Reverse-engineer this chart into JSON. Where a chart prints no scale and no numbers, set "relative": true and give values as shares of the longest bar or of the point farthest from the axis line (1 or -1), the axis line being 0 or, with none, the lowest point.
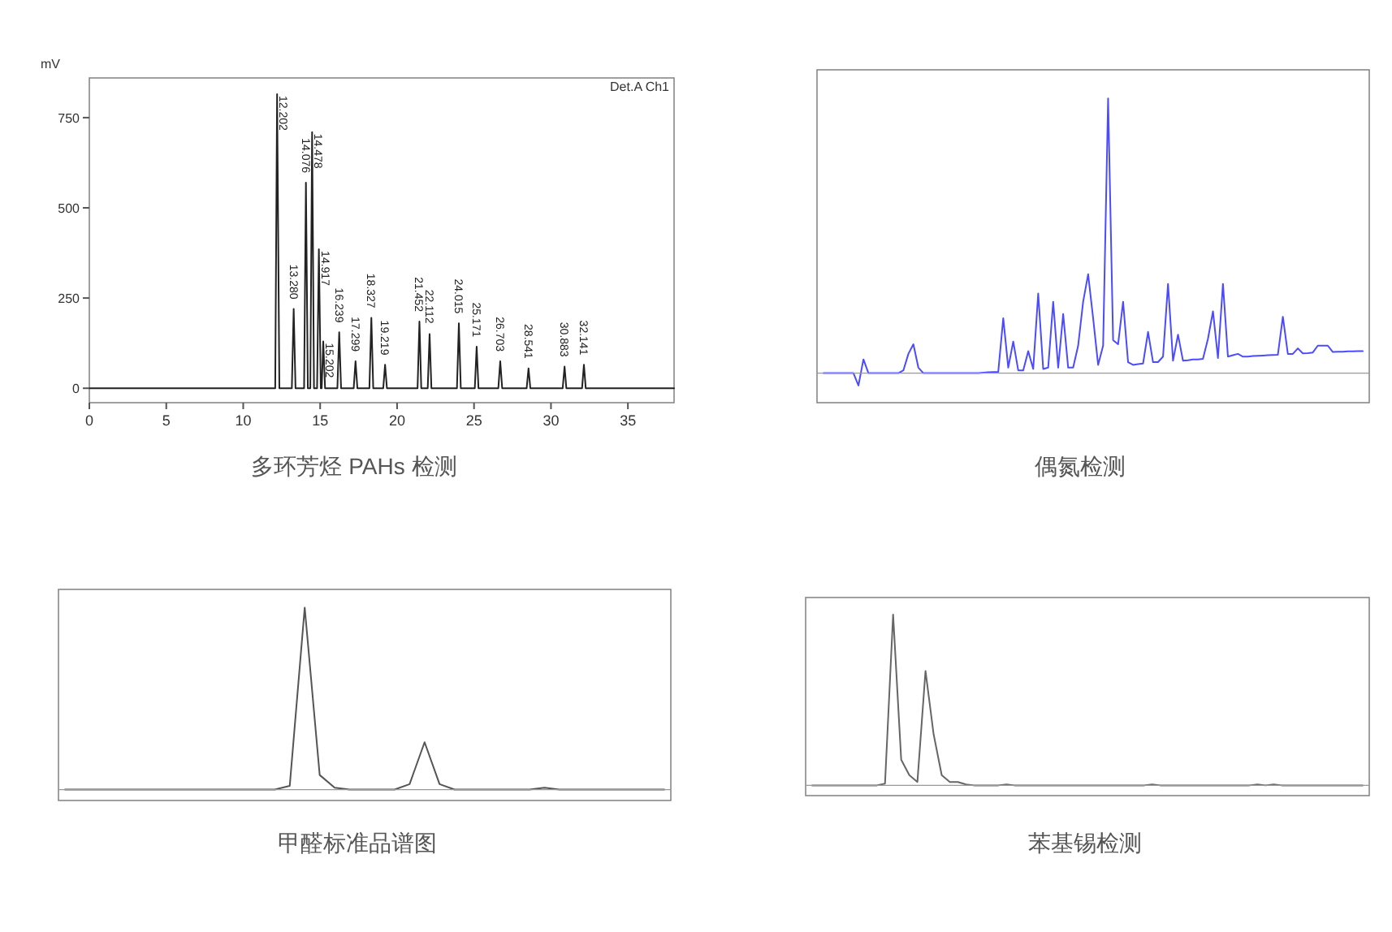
{
  "chart_data": [
    {
      "type": "line",
      "title": "多环芳烃 PAHs 检测",
      "ylabel": "mV",
      "xlim": [
        0,
        38
      ],
      "xticks": [
        0,
        5,
        10,
        15,
        20,
        25,
        30,
        35
      ],
      "ylim": [
        -40,
        860
      ],
      "yticks": [
        0,
        250,
        500,
        750
      ],
      "x": [
        0,
        11.8,
        12.08,
        12.202,
        12.35,
        13.16,
        13.28,
        13.4,
        13.956,
        14.076,
        14.2,
        14.36,
        14.478,
        14.6,
        14.8,
        14.917,
        15.04,
        15.1,
        15.202,
        15.32,
        16.12,
        16.239,
        16.36,
        17.18,
        17.299,
        17.42,
        18.2,
        18.327,
        18.45,
        19.1,
        19.219,
        19.34,
        21.33,
        21.452,
        21.57,
        21.99,
        22.112,
        22.23,
        23.89,
        24.015,
        24.14,
        25.05,
        25.171,
        25.29,
        26.58,
        26.703,
        26.83,
        28.42,
        28.541,
        28.66,
        30.76,
        30.883,
        31.0,
        32.02,
        32.141,
        32.26,
        38
      ],
      "series": [
        {
          "color": "#222222",
          "values": [
            0,
            0,
            0,
            815,
            0,
            0,
            220,
            0,
            0,
            570,
            0,
            0,
            710,
            0,
            0,
            385,
            0,
            0,
            130,
            0,
            0,
            155,
            0,
            0,
            75,
            0,
            0,
            195,
            0,
            0,
            65,
            0,
            0,
            185,
            0,
            0,
            150,
            0,
            0,
            180,
            0,
            0,
            115,
            0,
            0,
            75,
            0,
            0,
            55,
            0,
            0,
            60,
            0,
            0,
            65,
            0,
            0
          ]
        }
      ],
      "annotations": [
        "Det.A Ch1",
        {
          "text": "12.202",
          "x": 12.202,
          "y": 815
        },
        {
          "text": "13.280",
          "x": 13.28,
          "y": 220
        },
        {
          "text": "14.076",
          "x": 14.076,
          "y": 570
        },
        {
          "text": "14.478",
          "x": 14.478,
          "y": 710
        },
        {
          "text": "14.917",
          "x": 14.917,
          "y": 385
        },
        {
          "text": "15.202",
          "x": 15.202,
          "y": 130
        },
        {
          "text": "16.239",
          "x": 16.239,
          "y": 155
        },
        {
          "text": "17.299",
          "x": 17.299,
          "y": 75
        },
        {
          "text": "18.327",
          "x": 18.327,
          "y": 195
        },
        {
          "text": "19.219",
          "x": 19.219,
          "y": 65
        },
        {
          "text": "21.452",
          "x": 21.452,
          "y": 185
        },
        {
          "text": "22.112",
          "x": 22.112,
          "y": 150
        },
        {
          "text": "24.015",
          "x": 24.015,
          "y": 180
        },
        {
          "text": "25.171",
          "x": 25.171,
          "y": 115
        },
        {
          "text": "26.703",
          "x": 26.703,
          "y": 75
        },
        {
          "text": "28.541",
          "x": 28.541,
          "y": 55
        },
        {
          "text": "30.883",
          "x": 30.883,
          "y": 60
        },
        {
          "text": "32.141",
          "x": 32.141,
          "y": 65
        }
      ]
    },
    {
      "type": "line",
      "title": "偶氮检测",
      "relative": true,
      "categories": [
        null,
        null,
        null,
        null,
        null,
        null,
        null,
        null,
        null,
        null,
        null,
        null,
        null,
        null,
        null,
        null,
        null,
        null,
        null,
        null,
        null,
        null,
        null,
        null,
        null,
        null,
        null,
        null,
        null,
        null,
        null,
        null,
        null,
        null,
        null,
        null,
        null,
        null,
        null,
        null,
        null,
        null,
        null,
        null,
        null,
        null,
        null,
        null,
        null,
        null,
        null,
        null,
        null,
        null,
        null,
        null,
        null,
        null,
        null,
        null,
        null,
        null,
        null,
        null,
        null,
        null,
        null,
        null,
        null,
        null,
        null,
        null,
        null,
        null,
        null,
        null,
        null,
        null,
        null,
        null,
        null,
        null,
        null,
        null,
        null,
        null,
        null,
        null,
        null,
        null,
        null,
        null,
        null,
        null,
        null,
        null,
        null,
        null,
        null,
        null,
        null,
        null,
        null,
        null,
        null,
        null,
        null,
        null,
        null
      ],
      "series": [
        {
          "color": "#4b4bff",
          "values": [
            0,
            0,
            0,
            0,
            0,
            0,
            0,
            -0.045,
            0.05,
            0,
            0,
            0,
            0,
            0,
            0,
            0,
            0.01,
            0.07,
            0.105,
            0.02,
            0,
            0,
            0,
            0,
            0,
            0,
            0,
            0,
            0,
            0,
            0,
            0,
            0.002,
            0.003,
            0.004,
            0.005,
            0.2,
            0.02,
            0.115,
            0.01,
            0.01,
            0.08,
            0.015,
            0.29,
            0.015,
            0.02,
            0.26,
            0.02,
            0.215,
            0.02,
            0.02,
            0.1,
            0.26,
            0.36,
            0.2,
            0.03,
            0.1,
            1,
            0.12,
            0.105,
            0.26,
            0.04,
            0.03,
            0.033,
            0.035,
            0.15,
            0.04,
            0.04,
            0.06,
            0.325,
            0.045,
            0.14,
            0.045,
            0.047,
            0.05,
            0.05,
            0.052,
            0.125,
            0.225,
            0.055,
            0.325,
            0.06,
            0.065,
            0.07,
            0.06,
            0.06,
            0.062,
            0.063,
            0.064,
            0.065,
            0.066,
            0.067,
            0.205,
            0.07,
            0.07,
            0.09,
            0.072,
            0.073,
            0.075,
            0.1,
            0.1,
            0.1,
            0.077,
            0.078,
            0.078,
            0.079,
            0.079,
            0.08,
            0.08
          ]
        }
      ]
    },
    {
      "type": "line",
      "title": "甲醛标准品谱图",
      "relative": true,
      "categories": [
        null,
        null,
        null,
        null,
        null,
        null,
        null,
        null,
        null,
        null,
        null,
        null,
        null,
        null,
        null,
        null,
        null,
        null,
        null,
        null,
        null,
        null,
        null,
        null,
        null,
        null,
        null,
        null,
        null,
        null,
        null,
        null,
        null,
        null,
        null,
        null,
        null,
        null,
        null,
        null,
        null
      ],
      "series": [
        {
          "color": "#555555",
          "values": [
            0,
            0,
            0,
            0,
            0,
            0,
            0,
            0,
            0,
            0,
            0,
            0,
            0,
            0,
            0,
            0.02,
            1,
            0.08,
            0.01,
            0,
            0,
            0,
            0,
            0.03,
            0.26,
            0.03,
            0,
            0,
            0,
            0,
            0,
            0,
            0.01,
            0,
            0,
            0,
            0,
            0,
            0,
            0,
            0
          ]
        }
      ]
    },
    {
      "type": "line",
      "title": "苯基锡检测",
      "relative": true,
      "categories": [
        null,
        null,
        null,
        null,
        null,
        null,
        null,
        null,
        null,
        null,
        null,
        null,
        null,
        null,
        null,
        null,
        null,
        null,
        null,
        null,
        null,
        null,
        null,
        null,
        null,
        null,
        null,
        null,
        null,
        null,
        null,
        null,
        null,
        null,
        null,
        null,
        null,
        null,
        null,
        null,
        null,
        null,
        null,
        null,
        null,
        null,
        null,
        null,
        null,
        null,
        null,
        null,
        null,
        null,
        null,
        null,
        null,
        null,
        null,
        null,
        null,
        null,
        null,
        null,
        null,
        null,
        null,
        null,
        null
      ],
      "series": [
        {
          "color": "#666666",
          "values": [
            0,
            0,
            0,
            0,
            0,
            0,
            0,
            0,
            0,
            0.01,
            1,
            0.15,
            0.06,
            0.02,
            0.67,
            0.3,
            0.06,
            0.02,
            0.02,
            0.005,
            0,
            0,
            0,
            0,
            0.005,
            0,
            0,
            0,
            0,
            0,
            0,
            0,
            0,
            0,
            0,
            0,
            0,
            0,
            0,
            0,
            0,
            0,
            0.005,
            0,
            0,
            0,
            0,
            0,
            0,
            0,
            0,
            0,
            0,
            0,
            0,
            0.005,
            0,
            0.005,
            0,
            0,
            0,
            0,
            0,
            0,
            0,
            0,
            0,
            0,
            0
          ]
        }
      ]
    }
  ]
}
